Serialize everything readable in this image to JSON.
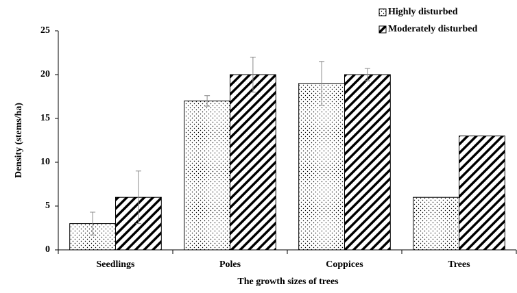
{
  "chart_data": {
    "type": "bar",
    "categories": [
      "Seedlings",
      "Poles",
      "Coppices",
      "Trees"
    ],
    "series": [
      {
        "name": "Highly disturbed",
        "color": "#000000",
        "pattern": "dots",
        "values": [
          3,
          17,
          19,
          6
        ],
        "errors": [
          1.3,
          0.6,
          2.5,
          null
        ]
      },
      {
        "name": "Moderately disturbed",
        "color": "#000000",
        "pattern": "hatch",
        "values": [
          6,
          20,
          20,
          13
        ],
        "errors": [
          3,
          2,
          0.7,
          null
        ]
      }
    ],
    "ylabel": "Density (stems/ha)",
    "xlabel": "The growth sizes of trees",
    "ylim": [
      0,
      25
    ],
    "yticks": [
      0,
      5,
      10,
      15,
      20,
      25
    ],
    "legend": "upper right",
    "grid": false
  }
}
